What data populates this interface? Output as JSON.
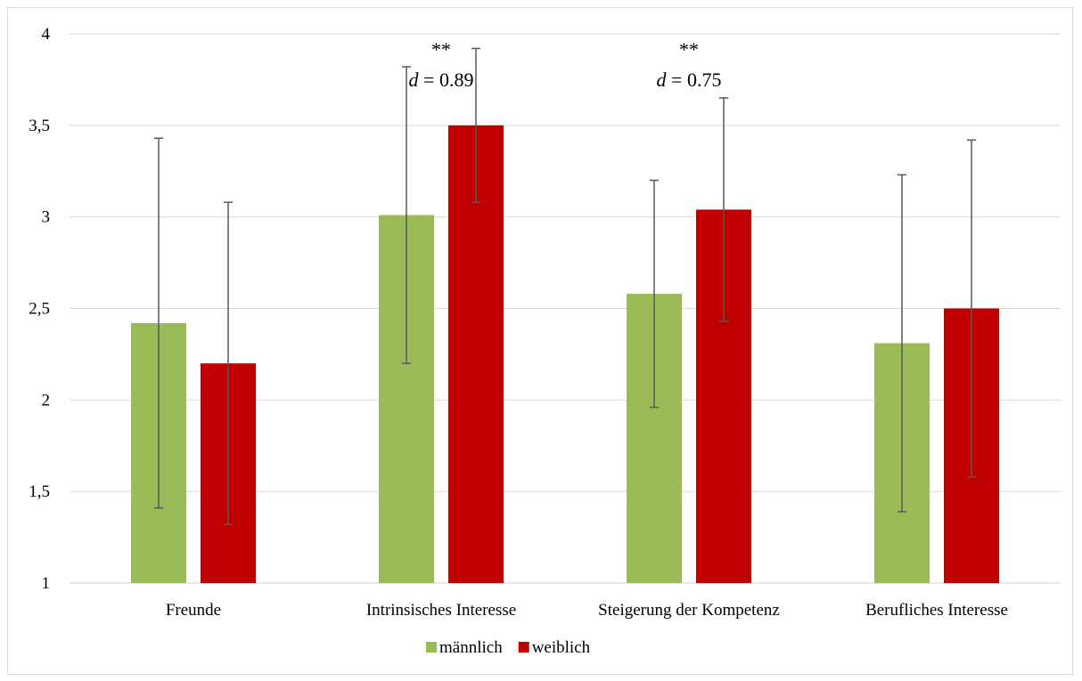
{
  "chart_data": {
    "type": "bar",
    "categories": [
      "Freunde",
      "Intrinsisches Interesse",
      "Steigerung der Kompetenz",
      "Berufliches Interesse"
    ],
    "series": [
      {
        "name": "männlich",
        "color": "#9bbb59",
        "values": [
          2.42,
          3.01,
          2.58,
          2.31
        ],
        "error_low": [
          1.41,
          2.2,
          1.96,
          1.39
        ],
        "error_high": [
          3.43,
          3.82,
          3.2,
          3.23
        ]
      },
      {
        "name": "weiblich",
        "color": "#c00000",
        "values": [
          2.2,
          3.5,
          3.04,
          2.5
        ],
        "error_low": [
          1.32,
          3.08,
          2.43,
          1.58
        ],
        "error_high": [
          3.08,
          3.92,
          3.65,
          3.42
        ]
      }
    ],
    "ylim": [
      1,
      4
    ],
    "yticks": [
      1,
      1.5,
      2,
      2.5,
      3,
      3.5,
      4
    ],
    "ytick_labels": [
      "1",
      "1,5",
      "2",
      "2,5",
      "3",
      "3,5",
      "4"
    ],
    "grid": true,
    "legend_position": "bottom",
    "annotations": [
      {
        "category_index": 1,
        "stars": "**",
        "d_symbol": "d",
        "d_text": " = 0.89"
      },
      {
        "category_index": 2,
        "stars": "**",
        "d_symbol": "d",
        "d_text": " = 0.75"
      }
    ]
  }
}
